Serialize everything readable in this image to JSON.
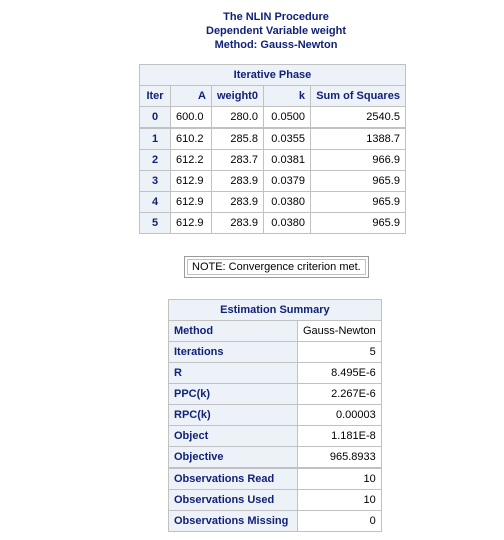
{
  "titles": {
    "line1": "The NLIN Procedure",
    "line2": "Dependent Variable weight",
    "line3": "Method: Gauss-Newton"
  },
  "iterative_phase": {
    "caption": "Iterative Phase",
    "headers": [
      "Iter",
      "A",
      "weight0",
      "k",
      "Sum of Squares"
    ],
    "rows": [
      {
        "iter": "0",
        "a": "600.0",
        "weight0": "280.0",
        "k": "0.0500",
        "ss": "2540.5"
      },
      {
        "iter": "1",
        "a": "610.2",
        "weight0": "285.8",
        "k": "0.0355",
        "ss": "1388.7"
      },
      {
        "iter": "2",
        "a": "612.2",
        "weight0": "283.7",
        "k": "0.0381",
        "ss": "966.9"
      },
      {
        "iter": "3",
        "a": "612.9",
        "weight0": "283.9",
        "k": "0.0379",
        "ss": "965.9"
      },
      {
        "iter": "4",
        "a": "612.9",
        "weight0": "283.9",
        "k": "0.0380",
        "ss": "965.9"
      },
      {
        "iter": "5",
        "a": "612.9",
        "weight0": "283.9",
        "k": "0.0380",
        "ss": "965.9"
      }
    ]
  },
  "note": "NOTE: Convergence criterion met.",
  "estimation_summary": {
    "caption": "Estimation Summary",
    "rows": [
      {
        "label": "Method",
        "value": "Gauss-Newton"
      },
      {
        "label": "Iterations",
        "value": "5"
      },
      {
        "label": "R",
        "value": "8.495E-6"
      },
      {
        "label": "PPC(k)",
        "value": "2.267E-6"
      },
      {
        "label": "RPC(k)",
        "value": "0.00003"
      },
      {
        "label": "Object",
        "value": "1.181E-8"
      },
      {
        "label": "Objective",
        "value": "965.8933"
      },
      {
        "label": "Observations Read",
        "value": "10"
      },
      {
        "label": "Observations Used",
        "value": "10"
      },
      {
        "label": "Observations Missing",
        "value": "0"
      }
    ]
  }
}
